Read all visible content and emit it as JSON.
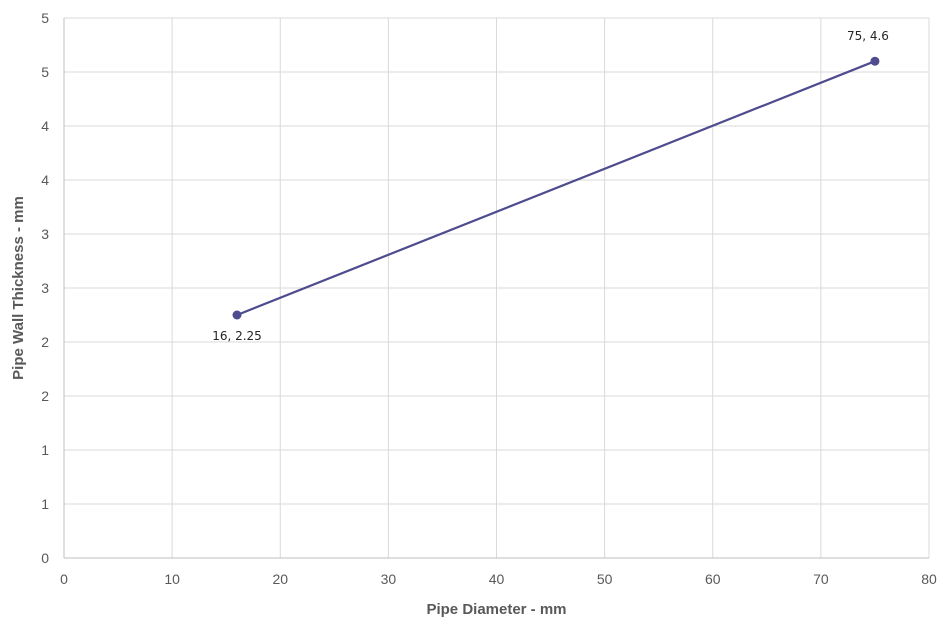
{
  "chart_data": {
    "type": "line",
    "title": "",
    "xlabel": "Pipe Diameter - mm",
    "ylabel": "Pipe Wall Thickness - mm",
    "xlim": [
      0,
      80
    ],
    "ylim": [
      0,
      5
    ],
    "x_ticks": [
      0,
      10,
      20,
      30,
      40,
      50,
      60,
      70,
      80
    ],
    "y_ticks": [
      0,
      0.5,
      1,
      1.5,
      2,
      2.5,
      3,
      3.5,
      4,
      4.5,
      5
    ],
    "x_tick_labels": [
      "0",
      "10",
      "20",
      "30",
      "40",
      "50",
      "60",
      "70",
      "80"
    ],
    "y_tick_labels": [
      "0",
      "1",
      "1",
      "2",
      "2",
      "3",
      "3",
      "4",
      "4",
      "5",
      "5"
    ],
    "grid": true,
    "legend": false,
    "series": [
      {
        "color": "#4e4b8f",
        "points": [
          {
            "x": 16,
            "y": 2.25,
            "label": "16, 2.25"
          },
          {
            "x": 75,
            "y": 4.6,
            "label": "75, 4.6"
          }
        ]
      }
    ]
  }
}
